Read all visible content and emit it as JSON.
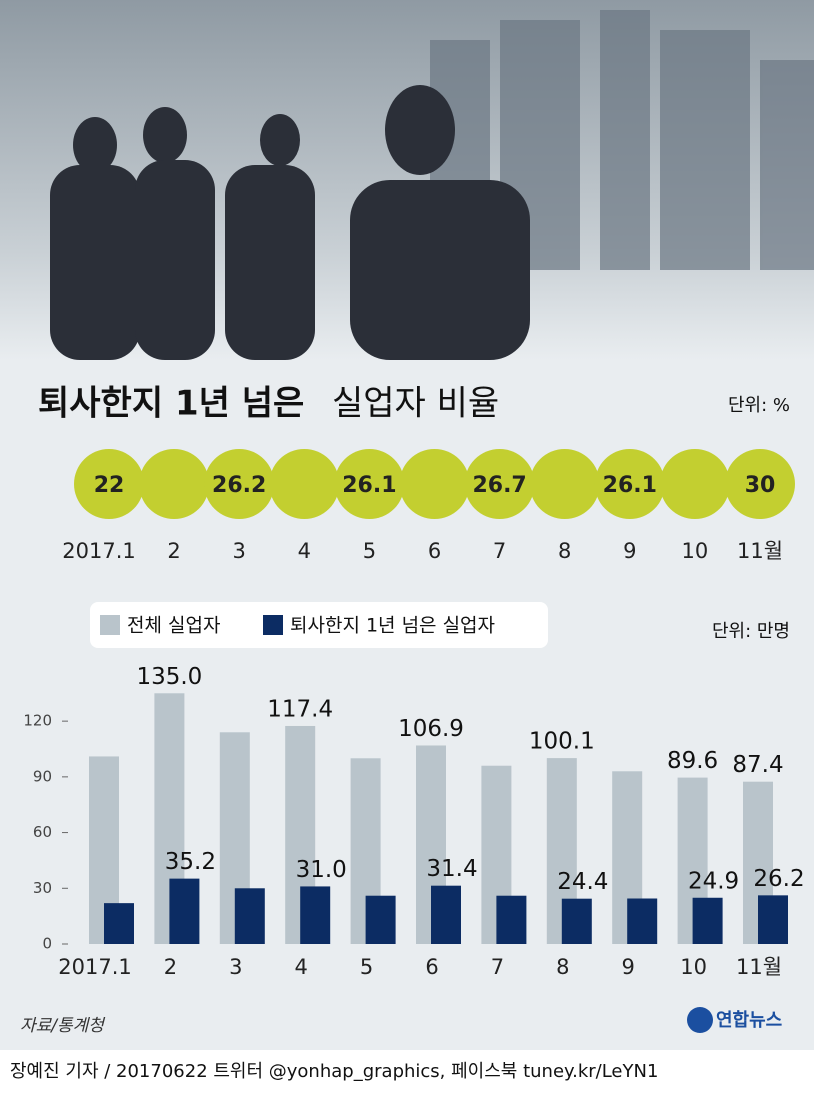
{
  "chart_data": [
    {
      "type": "circles",
      "title": "퇴사한지 1년 넘은",
      "title_light": "실업자 비율",
      "unit": "단위: %",
      "categories": [
        "2017.1",
        "2",
        "3",
        "4",
        "5",
        "6",
        "7",
        "8",
        "9",
        "10",
        "11월"
      ],
      "values": [
        22.0,
        null,
        26.2,
        null,
        26.1,
        null,
        26.7,
        null,
        26.1,
        null,
        30.0
      ],
      "color": "#c3cf30"
    },
    {
      "type": "bar",
      "unit": "단위: 만명",
      "categories": [
        "2017.1",
        "2",
        "3",
        "4",
        "5",
        "6",
        "7",
        "8",
        "9",
        "10",
        "11월"
      ],
      "series": [
        {
          "name": "전체 실업자",
          "color": "#b9c4cb",
          "values": [
            101,
            135.0,
            114,
            117.4,
            100,
            106.9,
            96,
            100.1,
            93,
            89.6,
            87.4
          ],
          "value_labels": [
            null,
            "135.0",
            null,
            "117.4",
            null,
            "106.9",
            null,
            "100.1",
            null,
            "89.6",
            "87.4"
          ]
        },
        {
          "name": "퇴사한지 1년 넘은 실업자",
          "color": "#0c2c63",
          "values": [
            22,
            35.2,
            30,
            31.0,
            26,
            31.4,
            26,
            24.4,
            24.5,
            24.9,
            26.2
          ],
          "value_labels": [
            null,
            "35.2",
            null,
            "31.0",
            null,
            "31.4",
            null,
            "24.4",
            null,
            "24.9",
            "26.2"
          ]
        }
      ],
      "ylim": [
        0,
        140
      ],
      "yticks": [
        0,
        30,
        60,
        90,
        120
      ]
    }
  ],
  "source": "자료/통계청",
  "logo": "연합뉴스",
  "footer": "장예진 기자 / 20170622 트위터 @yonhap_graphics, 페이스북 tuney.kr/LeYN1"
}
